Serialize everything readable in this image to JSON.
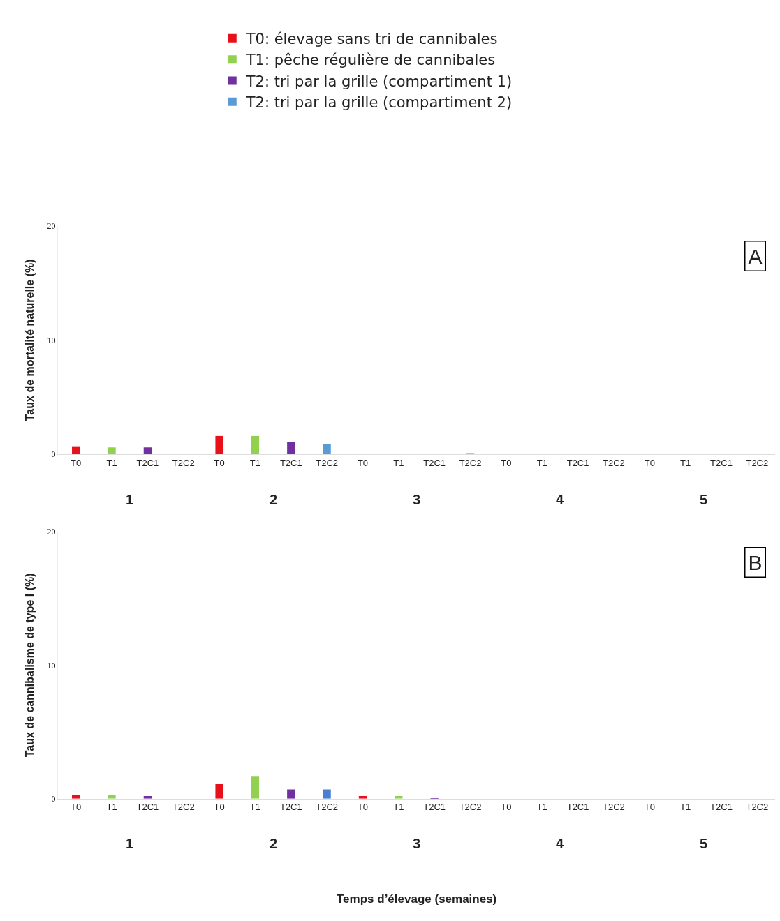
{
  "chart_data": [
    {
      "type": "bar",
      "ylabel": "Taux de mortalité naturelle (%)",
      "categories": [
        "T0",
        "T1",
        "T2C1",
        "T2C2",
        "T0",
        "T1",
        "T2C1",
        "T2C2",
        "T0",
        "T1",
        "T2C1",
        "T2C2",
        "T0",
        "T1",
        "T2C1",
        "T2C2",
        "T0",
        "T1",
        "T2C1",
        "T2C2"
      ],
      "series": [
        {
          "name": "T0: élevage sans tri de cannibales",
          "color": "#e8101a",
          "values": [
            0.7,
            null,
            null,
            null,
            1.6,
            null,
            null,
            null,
            0,
            null,
            null,
            null,
            0,
            null,
            null,
            null,
            0,
            null,
            null,
            null
          ]
        },
        {
          "name": "T1: pêche régulière de cannibales",
          "color": "#92d050",
          "values": [
            null,
            0.6,
            null,
            null,
            null,
            1.6,
            null,
            null,
            null,
            0,
            null,
            null,
            null,
            0,
            null,
            null,
            null,
            0,
            null,
            null
          ]
        },
        {
          "name": "T2: tri par la grille (compartiment 1)",
          "color": "#7030a0",
          "values": [
            null,
            null,
            0.6,
            null,
            null,
            null,
            1.1,
            null,
            null,
            null,
            0,
            null,
            null,
            null,
            0,
            null,
            null,
            null,
            0,
            null
          ]
        },
        {
          "name": "T2: tri par la grille (compartiment 2)",
          "color": "#5b9bd5",
          "values": [
            null,
            null,
            null,
            0,
            null,
            null,
            null,
            0.9,
            null,
            null,
            null,
            0.1,
            null,
            null,
            null,
            0,
            null,
            null,
            null,
            0
          ]
        }
      ],
      "ylim": [
        0,
        20
      ],
      "yticks": [
        0,
        10,
        20
      ],
      "legend": "top",
      "annotations": [
        "A",
        "1",
        "2",
        "3",
        "4",
        "5"
      ]
    },
    {
      "type": "bar",
      "ylabel": "Taux de cannibalisme de type I (%)",
      "xlabel": "Temps d’élevage (semaines)",
      "categories": [
        "T0",
        "T1",
        "T2C1",
        "T2C2",
        "T0",
        "T1",
        "T2C1",
        "T2C2",
        "T0",
        "T1",
        "T2C1",
        "T2C2",
        "T0",
        "T1",
        "T2C1",
        "T2C2",
        "T0",
        "T1",
        "T2C1",
        "T2C2"
      ],
      "series": [
        {
          "color": "#e8101a",
          "values": [
            0.3,
            null,
            null,
            null,
            1.1,
            null,
            null,
            null,
            0.2,
            null,
            null,
            null,
            0,
            null,
            null,
            null,
            0,
            null,
            null,
            null
          ]
        },
        {
          "color": "#92d050",
          "values": [
            null,
            0.3,
            null,
            null,
            null,
            1.7,
            null,
            null,
            null,
            0.2,
            null,
            null,
            null,
            0,
            null,
            null,
            null,
            0,
            null,
            null
          ]
        },
        {
          "color": "#7030a0",
          "values": [
            null,
            null,
            0.2,
            null,
            null,
            null,
            0.7,
            null,
            null,
            null,
            0.1,
            null,
            null,
            null,
            0,
            null,
            null,
            null,
            0,
            null
          ]
        },
        {
          "color": "#4a7fd0",
          "values": [
            null,
            null,
            null,
            0,
            null,
            null,
            null,
            0.7,
            null,
            null,
            null,
            0,
            null,
            null,
            null,
            0,
            null,
            null,
            null,
            0
          ]
        }
      ],
      "ylim": [
        0,
        20
      ],
      "yticks": [
        0,
        10,
        20
      ],
      "annotations": [
        "B",
        "1",
        "2",
        "3",
        "4",
        "5"
      ]
    }
  ]
}
